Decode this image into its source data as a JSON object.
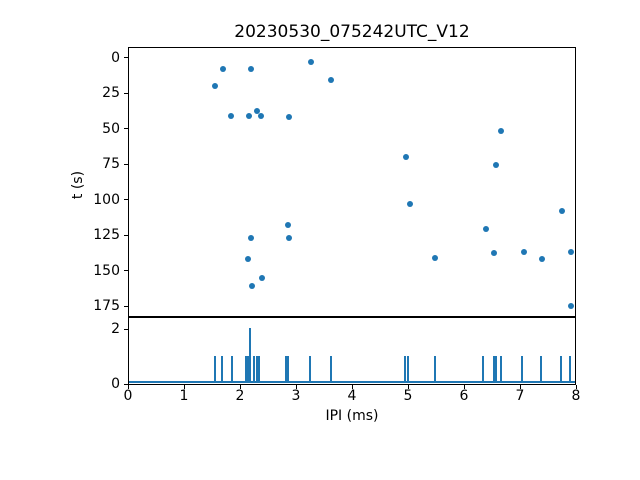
{
  "figure": {
    "title": "20230530_075242UTC_V12",
    "background": "#ffffff",
    "accent_color": "#1f77b4",
    "text_color": "#000000"
  },
  "chart_data": [
    {
      "id": "scatter-panel",
      "type": "scatter",
      "title": "20230530_075242UTC_V12",
      "ylabel": "t (s)",
      "xlim": [
        0,
        8
      ],
      "ylim": [
        -7.5,
        182.5
      ],
      "y_inverted": true,
      "yticks": [
        0,
        25,
        50,
        75,
        100,
        125,
        150,
        175
      ],
      "grid": false,
      "marker_color": "#1f77b4",
      "points": [
        [
          1.53,
          19
        ],
        [
          1.67,
          7
        ],
        [
          1.83,
          40
        ],
        [
          2.12,
          141
        ],
        [
          2.14,
          40
        ],
        [
          2.17,
          126
        ],
        [
          2.18,
          7
        ],
        [
          2.2,
          160
        ],
        [
          2.28,
          37
        ],
        [
          2.35,
          40
        ],
        [
          2.37,
          154
        ],
        [
          2.84,
          117
        ],
        [
          2.85,
          126
        ],
        [
          2.86,
          41
        ],
        [
          3.25,
          2
        ],
        [
          3.61,
          15
        ],
        [
          4.94,
          69
        ],
        [
          5.01,
          102
        ],
        [
          5.47,
          140
        ],
        [
          6.38,
          120
        ],
        [
          6.52,
          137
        ],
        [
          6.55,
          75
        ],
        [
          6.65,
          51
        ],
        [
          7.06,
          136
        ],
        [
          7.38,
          141
        ],
        [
          7.73,
          107
        ],
        [
          7.89,
          136
        ],
        [
          7.89,
          174
        ]
      ]
    },
    {
      "id": "histogram-panel",
      "type": "bar",
      "xlabel": "IPI (ms)",
      "xlim": [
        0,
        8
      ],
      "ylim": [
        0,
        2.4
      ],
      "xticks": [
        0,
        1,
        2,
        3,
        4,
        5,
        6,
        7,
        8
      ],
      "yticks": [
        0,
        2
      ],
      "grid": false,
      "bar_color": "#1f77b4",
      "spikes": [
        [
          1.53,
          1
        ],
        [
          1.66,
          1
        ],
        [
          1.84,
          1
        ],
        [
          2.09,
          1
        ],
        [
          2.13,
          1
        ],
        [
          2.16,
          2
        ],
        [
          2.23,
          1
        ],
        [
          2.28,
          1
        ],
        [
          2.32,
          1
        ],
        [
          2.8,
          1
        ],
        [
          2.84,
          1
        ],
        [
          3.24,
          1
        ],
        [
          3.61,
          1
        ],
        [
          4.93,
          1
        ],
        [
          4.98,
          1
        ],
        [
          5.47,
          1
        ],
        [
          6.33,
          1
        ],
        [
          6.51,
          1
        ],
        [
          6.55,
          1
        ],
        [
          6.64,
          1
        ],
        [
          7.02,
          1
        ],
        [
          7.36,
          1
        ],
        [
          7.71,
          1
        ],
        [
          7.88,
          1
        ]
      ]
    }
  ]
}
